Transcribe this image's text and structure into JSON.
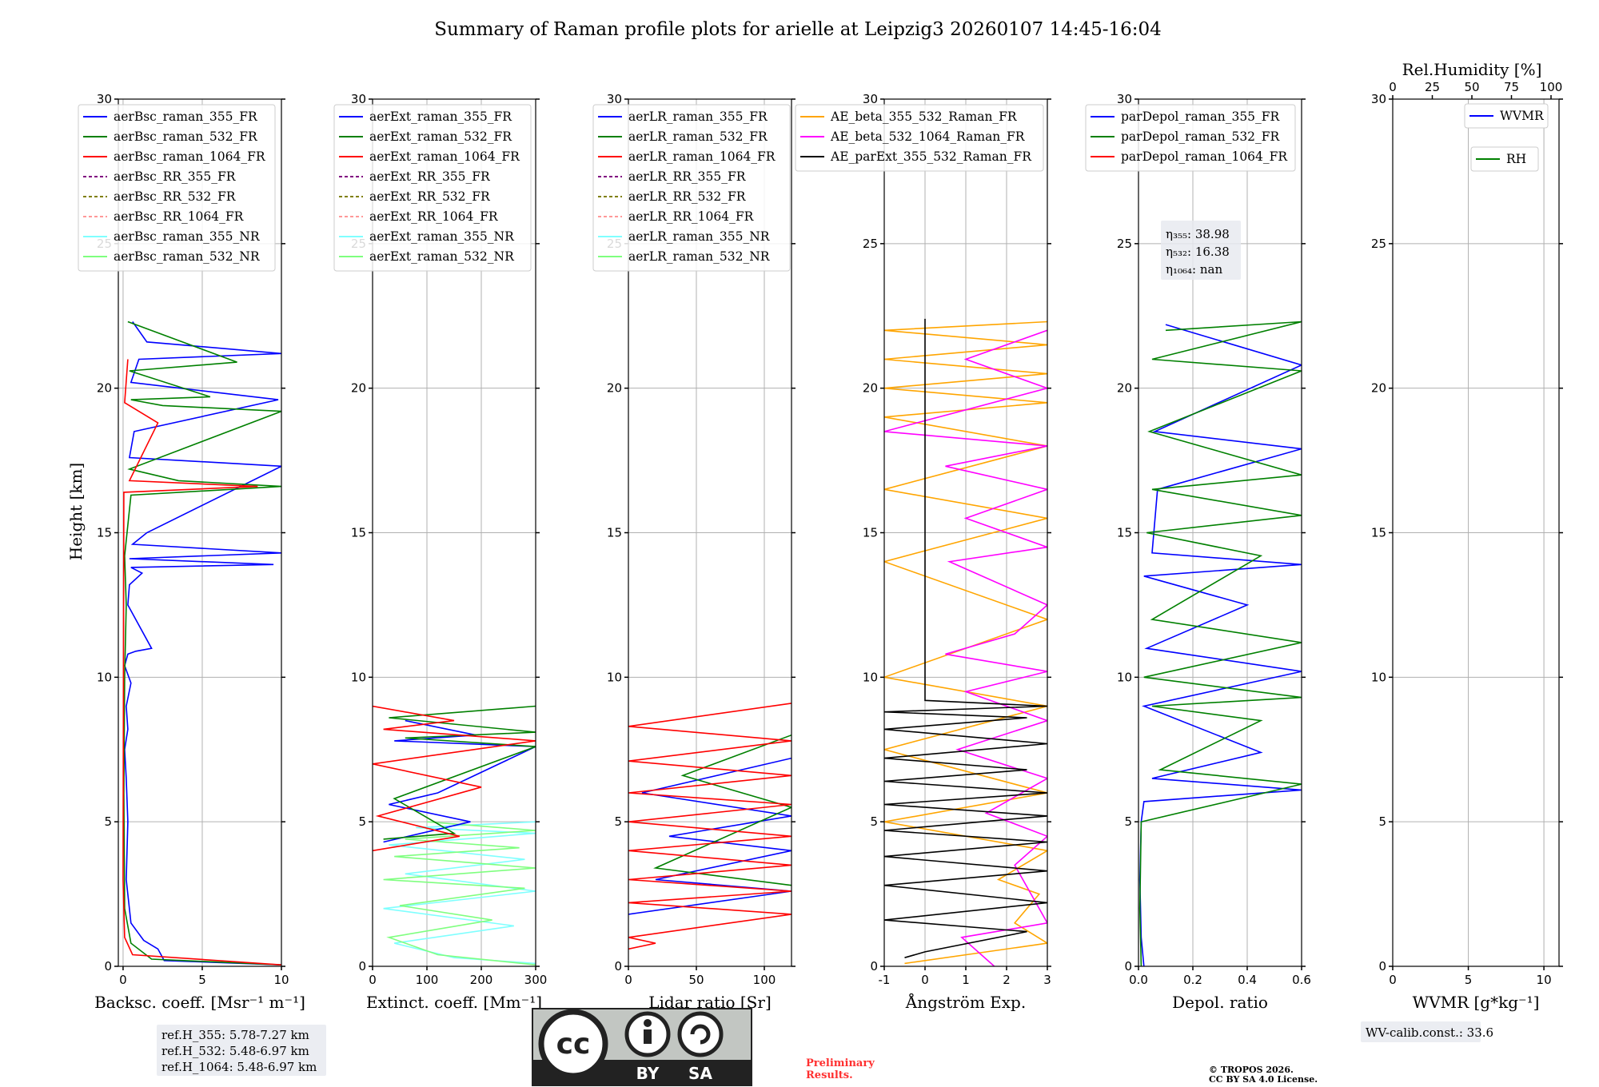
{
  "chart_data": {
    "type": "line",
    "title": "Summary of Raman profile plots for arielle at Leipzig3 20260107 14:45-16:04",
    "ylabel": "Height [km]",
    "ylim": [
      0,
      30
    ],
    "yticks": [
      0,
      5,
      10,
      15,
      20,
      25,
      30
    ],
    "panels": [
      {
        "id": "backscatter",
        "xlabel": "Backsc. coeff. [Msr⁻¹ m⁻¹]",
        "xlim": [
          -0.3,
          10
        ],
        "xticks": [
          0,
          5,
          10
        ],
        "legend": [
          {
            "label": "aerBsc_raman_355_FR",
            "color": "#0000ff",
            "style": "solid"
          },
          {
            "label": "aerBsc_raman_532_FR",
            "color": "#008000",
            "style": "solid"
          },
          {
            "label": "aerBsc_raman_1064_FR",
            "color": "#ff0000",
            "style": "solid"
          },
          {
            "label": "aerBsc_RR_355_FR",
            "color": "#800080",
            "style": "dashed"
          },
          {
            "label": "aerBsc_RR_532_FR",
            "color": "#808000",
            "style": "dashed"
          },
          {
            "label": "aerBsc_RR_1064_FR",
            "color": "#ff9999",
            "style": "dashed"
          },
          {
            "label": "aerBsc_raman_355_NR",
            "color": "#7fffff",
            "style": "solid"
          },
          {
            "label": "aerBsc_raman_532_NR",
            "color": "#7fff7f",
            "style": "solid"
          }
        ],
        "series": [
          {
            "name": "aerBsc_raman_355_FR",
            "color": "#0000ff",
            "x": [
              10,
              2.6,
              2.2,
              1.3,
              0.5,
              0.2,
              0.3,
              0.2,
              0.1,
              0.3,
              0.2,
              0.5,
              0.1,
              0.3,
              0.8,
              1.8,
              0.3,
              0.4,
              1.2,
              0.5,
              9.5,
              0.4,
              10,
              0.6,
              1.5,
              10,
              0.4,
              0.7,
              9.8,
              0.5,
              1.0,
              10,
              1.5,
              0.6
            ],
            "y": [
              0.05,
              0.2,
              0.6,
              0.9,
              1.5,
              3,
              5,
              6.5,
              7.5,
              8.2,
              9,
              9.8,
              10.4,
              10.8,
              10.9,
              11.0,
              12.5,
              13.2,
              13.6,
              13.8,
              13.9,
              14.1,
              14.3,
              14.6,
              15.0,
              17.3,
              17.6,
              18.5,
              19.6,
              20.2,
              21.0,
              21.2,
              21.6,
              22.3
            ]
          },
          {
            "name": "aerBsc_raman_532_FR",
            "color": "#008000",
            "x": [
              10,
              1.8,
              0.5,
              0.1,
              0.05,
              0.1,
              0.2,
              0.1,
              0.5,
              10,
              3.5,
              0.4,
              10,
              2.5,
              0.5,
              5.5,
              0.4,
              7.2,
              0.3
            ],
            "y": [
              0.05,
              0.25,
              0.8,
              2,
              6,
              10,
              12.5,
              14.2,
              16.3,
              16.6,
              16.8,
              17.2,
              19.2,
              19.4,
              19.6,
              19.7,
              20.6,
              20.9,
              22.3
            ]
          },
          {
            "name": "aerBsc_raman_1064_FR",
            "color": "#ff0000",
            "x": [
              10,
              0.6,
              0.1,
              0.0,
              0.05,
              8.5,
              0.4,
              2.2,
              0.1,
              0.3
            ],
            "y": [
              0.05,
              0.4,
              1.0,
              3,
              16.4,
              16.6,
              16.8,
              18.8,
              19.5,
              21.0
            ]
          }
        ]
      },
      {
        "id": "extinction",
        "xlabel": "Extinct. coeff. [Mm⁻¹]",
        "xlim": [
          0,
          300
        ],
        "xticks": [
          0,
          100,
          200,
          300
        ],
        "legend": [
          {
            "label": "aerExt_raman_355_FR",
            "color": "#0000ff",
            "style": "solid"
          },
          {
            "label": "aerExt_raman_532_FR",
            "color": "#008000",
            "style": "solid"
          },
          {
            "label": "aerExt_raman_1064_FR",
            "color": "#ff0000",
            "style": "solid"
          },
          {
            "label": "aerExt_RR_355_FR",
            "color": "#800080",
            "style": "dashed"
          },
          {
            "label": "aerExt_RR_532_FR",
            "color": "#808000",
            "style": "dashed"
          },
          {
            "label": "aerExt_RR_1064_FR",
            "color": "#ff9999",
            "style": "dashed"
          },
          {
            "label": "aerExt_raman_355_NR",
            "color": "#7fffff",
            "style": "solid"
          },
          {
            "label": "aerExt_raman_532_NR",
            "color": "#7fff7f",
            "style": "solid"
          }
        ],
        "series": [
          {
            "name": "aerExt_raman_355_NR",
            "color": "#7fffff",
            "x": [
              300,
              150,
              40,
              260,
              20,
              300,
              60,
              280,
              30,
              300,
              80,
              300
            ],
            "y": [
              0.1,
              0.3,
              0.8,
              1.4,
              2.0,
              2.6,
              3.2,
              3.7,
              4.2,
              4.6,
              4.8,
              5.0
            ]
          },
          {
            "name": "aerExt_raman_532_NR",
            "color": "#7fff7f",
            "x": [
              300,
              120,
              30,
              220,
              50,
              280,
              20,
              300,
              40,
              270,
              60,
              300,
              100
            ],
            "y": [
              0.05,
              0.4,
              1.0,
              1.6,
              2.1,
              2.7,
              3.0,
              3.4,
              3.8,
              4.1,
              4.4,
              4.7,
              5.0
            ]
          },
          {
            "name": "aerExt_raman_355_FR",
            "color": "#0000ff",
            "x": [
              20,
              180,
              30,
              120,
              300,
              40,
              190,
              60
            ],
            "y": [
              4.3,
              5.0,
              5.6,
              6.0,
              7.6,
              7.8,
              8.0,
              8.5
            ]
          },
          {
            "name": "aerExt_raman_532_FR",
            "color": "#008000",
            "x": [
              20,
              150,
              40,
              300,
              60,
              300,
              30,
              300
            ],
            "y": [
              4.4,
              4.6,
              5.8,
              7.6,
              7.9,
              8.1,
              8.6,
              9.0
            ]
          },
          {
            "name": "aerExt_raman_1064_FR",
            "color": "#ff0000",
            "x": [
              0,
              160,
              10,
              200,
              0,
              300,
              20,
              150,
              0
            ],
            "y": [
              4.0,
              4.5,
              5.2,
              6.2,
              7.0,
              7.8,
              8.2,
              8.5,
              9.0
            ]
          }
        ]
      },
      {
        "id": "lidar_ratio",
        "xlabel": "Lidar ratio [Sr]",
        "xlim": [
          0,
          120
        ],
        "xticks": [
          0,
          50,
          100
        ],
        "legend": [
          {
            "label": "aerLR_raman_355_FR",
            "color": "#0000ff",
            "style": "solid"
          },
          {
            "label": "aerLR_raman_532_FR",
            "color": "#008000",
            "style": "solid"
          },
          {
            "label": "aerLR_raman_1064_FR",
            "color": "#ff0000",
            "style": "solid"
          },
          {
            "label": "aerLR_RR_355_FR",
            "color": "#800080",
            "style": "dashed"
          },
          {
            "label": "aerLR_RR_532_FR",
            "color": "#808000",
            "style": "dashed"
          },
          {
            "label": "aerLR_RR_1064_FR",
            "color": "#ff9999",
            "style": "dashed"
          },
          {
            "label": "aerLR_raman_355_NR",
            "color": "#7fffff",
            "style": "solid"
          },
          {
            "label": "aerLR_raman_532_NR",
            "color": "#7fff7f",
            "style": "solid"
          }
        ],
        "series": [
          {
            "name": "aerLR_raman_355_FR",
            "color": "#0000ff",
            "x": [
              0,
              120,
              20,
              120,
              30,
              120,
              10,
              120
            ],
            "y": [
              1.8,
              2.6,
              3.0,
              4.0,
              4.5,
              5.2,
              6.0,
              7.2
            ]
          },
          {
            "name": "aerLR_raman_532_FR",
            "color": "#008000",
            "x": [
              120,
              20,
              120,
              40,
              120
            ],
            "y": [
              2.8,
              3.4,
              5.5,
              6.6,
              8.0
            ]
          },
          {
            "name": "aerLR_raman_1064_FR",
            "color": "#ff0000",
            "x": [
              0,
              20,
              0,
              120,
              0,
              120,
              0,
              120,
              0,
              120,
              0,
              120,
              0,
              120,
              0,
              120,
              0,
              120
            ],
            "y": [
              0.6,
              0.8,
              1.0,
              1.8,
              2.2,
              2.6,
              3.0,
              3.5,
              4.0,
              4.5,
              5.0,
              5.6,
              6.0,
              6.6,
              7.1,
              7.8,
              8.3,
              9.1
            ]
          }
        ]
      },
      {
        "id": "angstrom",
        "xlabel": "Ångström Exp.",
        "xlim": [
          -1,
          3
        ],
        "xticks": [
          -1,
          0,
          1,
          2,
          3
        ],
        "legend": [
          {
            "label": "AE_beta_355_532_Raman_FR",
            "color": "#ffa500",
            "style": "solid"
          },
          {
            "label": "AE_beta_532_1064_Raman_FR",
            "color": "#ff00ff",
            "style": "solid"
          },
          {
            "label": "AE_parExt_355_532_Raman_FR",
            "color": "#000000",
            "style": "solid"
          }
        ],
        "series": [
          {
            "name": "AE_beta_355_532_Raman_FR",
            "color": "#ffa500",
            "x": [
              -0.5,
              3.0,
              2.2,
              2.8,
              1.8,
              3.0,
              -1,
              3.0,
              -1,
              3.0,
              -1,
              3.0,
              -1,
              3.0,
              -1,
              3.0,
              -1,
              3.0,
              -1,
              3.0,
              -1,
              3.0,
              -1,
              3.0
            ],
            "y": [
              0.1,
              0.8,
              1.5,
              2.5,
              3.0,
              4.0,
              5.0,
              6.0,
              7.5,
              9.0,
              10.0,
              12.0,
              14.0,
              15.5,
              16.5,
              18.0,
              19.0,
              19.5,
              20.0,
              20.5,
              21.0,
              21.5,
              22.0,
              22.3
            ]
          },
          {
            "name": "AE_beta_532_1064_Raman_FR",
            "color": "#ff00ff",
            "x": [
              1.7,
              0.9,
              3.0,
              2.2,
              3.0,
              1.5,
              3.0,
              0.8,
              3.0,
              1.0,
              3.0,
              0.5,
              2.2,
              3.0,
              0.6,
              3.0,
              1.0,
              3.0,
              0.5,
              3.0,
              -1,
              3.0,
              1.0,
              3.0
            ],
            "y": [
              0.0,
              1.0,
              1.5,
              3.5,
              4.5,
              5.3,
              6.5,
              7.5,
              8.5,
              9.5,
              10.2,
              10.8,
              11.5,
              12.5,
              14.0,
              14.5,
              15.5,
              16.5,
              17.3,
              18.0,
              18.5,
              20.0,
              21.0,
              22.0
            ]
          },
          {
            "name": "AE_parExt_355_532_Raman_FR",
            "color": "#000000",
            "x": [
              -0.5,
              0,
              2.5,
              -1,
              3,
              -1,
              3,
              -1,
              3,
              -1,
              3,
              -1,
              3,
              -1,
              2.5,
              -1,
              3,
              -1,
              2.5,
              -1,
              3,
              0,
              0
            ],
            "y": [
              0.3,
              0.5,
              1.2,
              1.6,
              2.2,
              2.8,
              3.3,
              3.8,
              4.3,
              4.7,
              5.2,
              5.6,
              6.0,
              6.4,
              6.8,
              7.2,
              7.7,
              8.2,
              8.6,
              8.8,
              9.0,
              9.2,
              22.4
            ]
          }
        ]
      },
      {
        "id": "depol",
        "xlabel": "Depol. ratio",
        "xlim": [
          0,
          0.6
        ],
        "xticks": [
          0.0,
          0.2,
          0.4,
          0.6
        ],
        "legend": [
          {
            "label": "parDepol_raman_355_FR",
            "color": "#0000ff",
            "style": "solid"
          },
          {
            "label": "parDepol_raman_532_FR",
            "color": "#008000",
            "style": "solid"
          },
          {
            "label": "parDepol_raman_1064_FR",
            "color": "#ff0000",
            "style": "solid"
          }
        ],
        "annotation": [
          "η₃₅₅: 38.98",
          "η₅₃₂: 16.38",
          "η₁₀₆₄: nan"
        ],
        "series": [
          {
            "name": "parDepol_raman_355_FR",
            "color": "#0000ff",
            "x": [
              0.02,
              0.01,
              0.005,
              0.01,
              0.02,
              0.6,
              0.05,
              0.45,
              0.02,
              0.6,
              0.03,
              0.4,
              0.02,
              0.6,
              0.05,
              0.07,
              0.6,
              0.06,
              0.6,
              0.1
            ],
            "y": [
              0.0,
              1.0,
              3.0,
              5.0,
              5.7,
              6.1,
              6.5,
              7.4,
              9.0,
              10.2,
              11.0,
              12.5,
              13.5,
              13.9,
              14.3,
              16.5,
              17.9,
              18.5,
              20.8,
              22.2
            ]
          },
          {
            "name": "parDepol_raman_532_FR",
            "color": "#008000",
            "x": [
              0.01,
              0.005,
              0.01,
              0.6,
              0.08,
              0.45,
              0.05,
              0.6,
              0.02,
              0.6,
              0.05,
              0.45,
              0.03,
              0.6,
              0.05,
              0.6,
              0.04,
              0.6,
              0.05,
              0.6,
              0.1
            ],
            "y": [
              0.0,
              2.0,
              5.0,
              6.3,
              6.8,
              8.5,
              9.0,
              9.3,
              10.0,
              11.2,
              12.0,
              14.2,
              15.0,
              15.6,
              16.5,
              17.0,
              18.5,
              20.6,
              21.0,
              22.3,
              22.0
            ]
          }
        ]
      },
      {
        "id": "wvmr",
        "xlabel": "WVMR [g*kg⁻¹]",
        "xlim": [
          0,
          11
        ],
        "xticks": [
          0,
          5,
          10
        ],
        "top_axis_label": "Rel.Humidity [%]",
        "top_axis_ticks": [
          0,
          25,
          50,
          75,
          100
        ],
        "legend": [
          {
            "label": "WVMR",
            "color": "#0000ff",
            "style": "solid"
          },
          {
            "label": "RH",
            "color": "#008000",
            "style": "solid"
          }
        ],
        "series": []
      }
    ]
  },
  "ref_heights": [
    "ref.H_355: 5.78-7.27 km",
    "ref.H_532: 5.48-6.97 km",
    "ref.H_1064: 5.48-6.97 km"
  ],
  "wv_calib": "WV-calib.const.: 33.6",
  "license_badge": {
    "cc": "cc",
    "by": "BY",
    "sa": "SA"
  },
  "preliminary": [
    "Preliminary",
    "Results."
  ],
  "copyright": [
    "© TROPOS 2026.",
    "CC BY SA 4.0 License."
  ]
}
